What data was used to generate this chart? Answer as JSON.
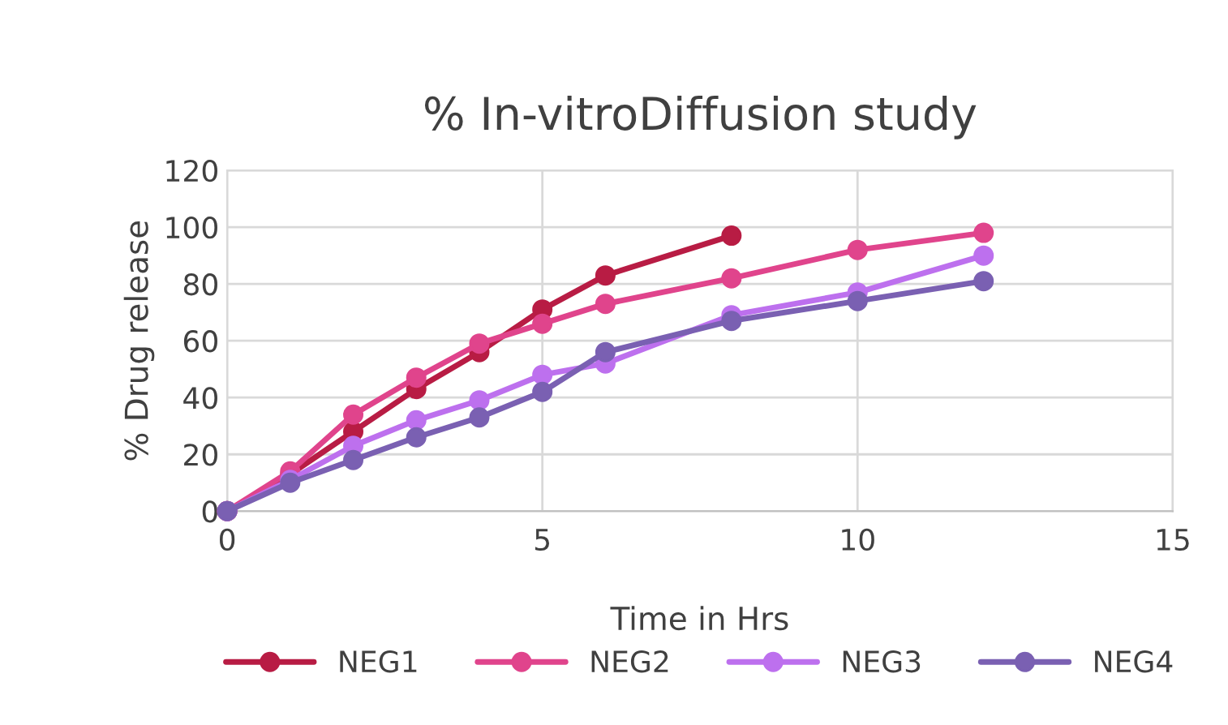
{
  "chart_data": {
    "type": "line",
    "title": "% In-vitroDiffusion study",
    "xlabel": "Time in Hrs",
    "ylabel": "% Drug release",
    "x": [
      0,
      1,
      2,
      3,
      4,
      5,
      6,
      8,
      10,
      12
    ],
    "series": [
      {
        "name": "NEG1",
        "color": "#b81c44",
        "values": [
          0,
          13,
          28,
          43,
          56,
          71,
          83,
          97,
          null,
          null
        ]
      },
      {
        "name": "NEG2",
        "color": "#e0448c",
        "values": [
          0,
          14,
          34,
          47,
          59,
          66,
          73,
          82,
          92,
          98
        ]
      },
      {
        "name": "NEG3",
        "color": "#bd70ee",
        "values": [
          0,
          11,
          23,
          32,
          39,
          48,
          52,
          69,
          77,
          90
        ]
      },
      {
        "name": "NEG4",
        "color": "#7a60b2",
        "values": [
          0,
          10,
          18,
          26,
          33,
          42,
          56,
          67,
          74,
          81
        ]
      }
    ],
    "xlim": [
      0,
      15
    ],
    "xticks": [
      0,
      5,
      10,
      15
    ],
    "ylim": [
      0,
      120
    ],
    "yticks": [
      0,
      20,
      40,
      60,
      80,
      100,
      120
    ],
    "grid": true,
    "legend": "bottom",
    "marker": "circle",
    "line_style": "solid"
  }
}
